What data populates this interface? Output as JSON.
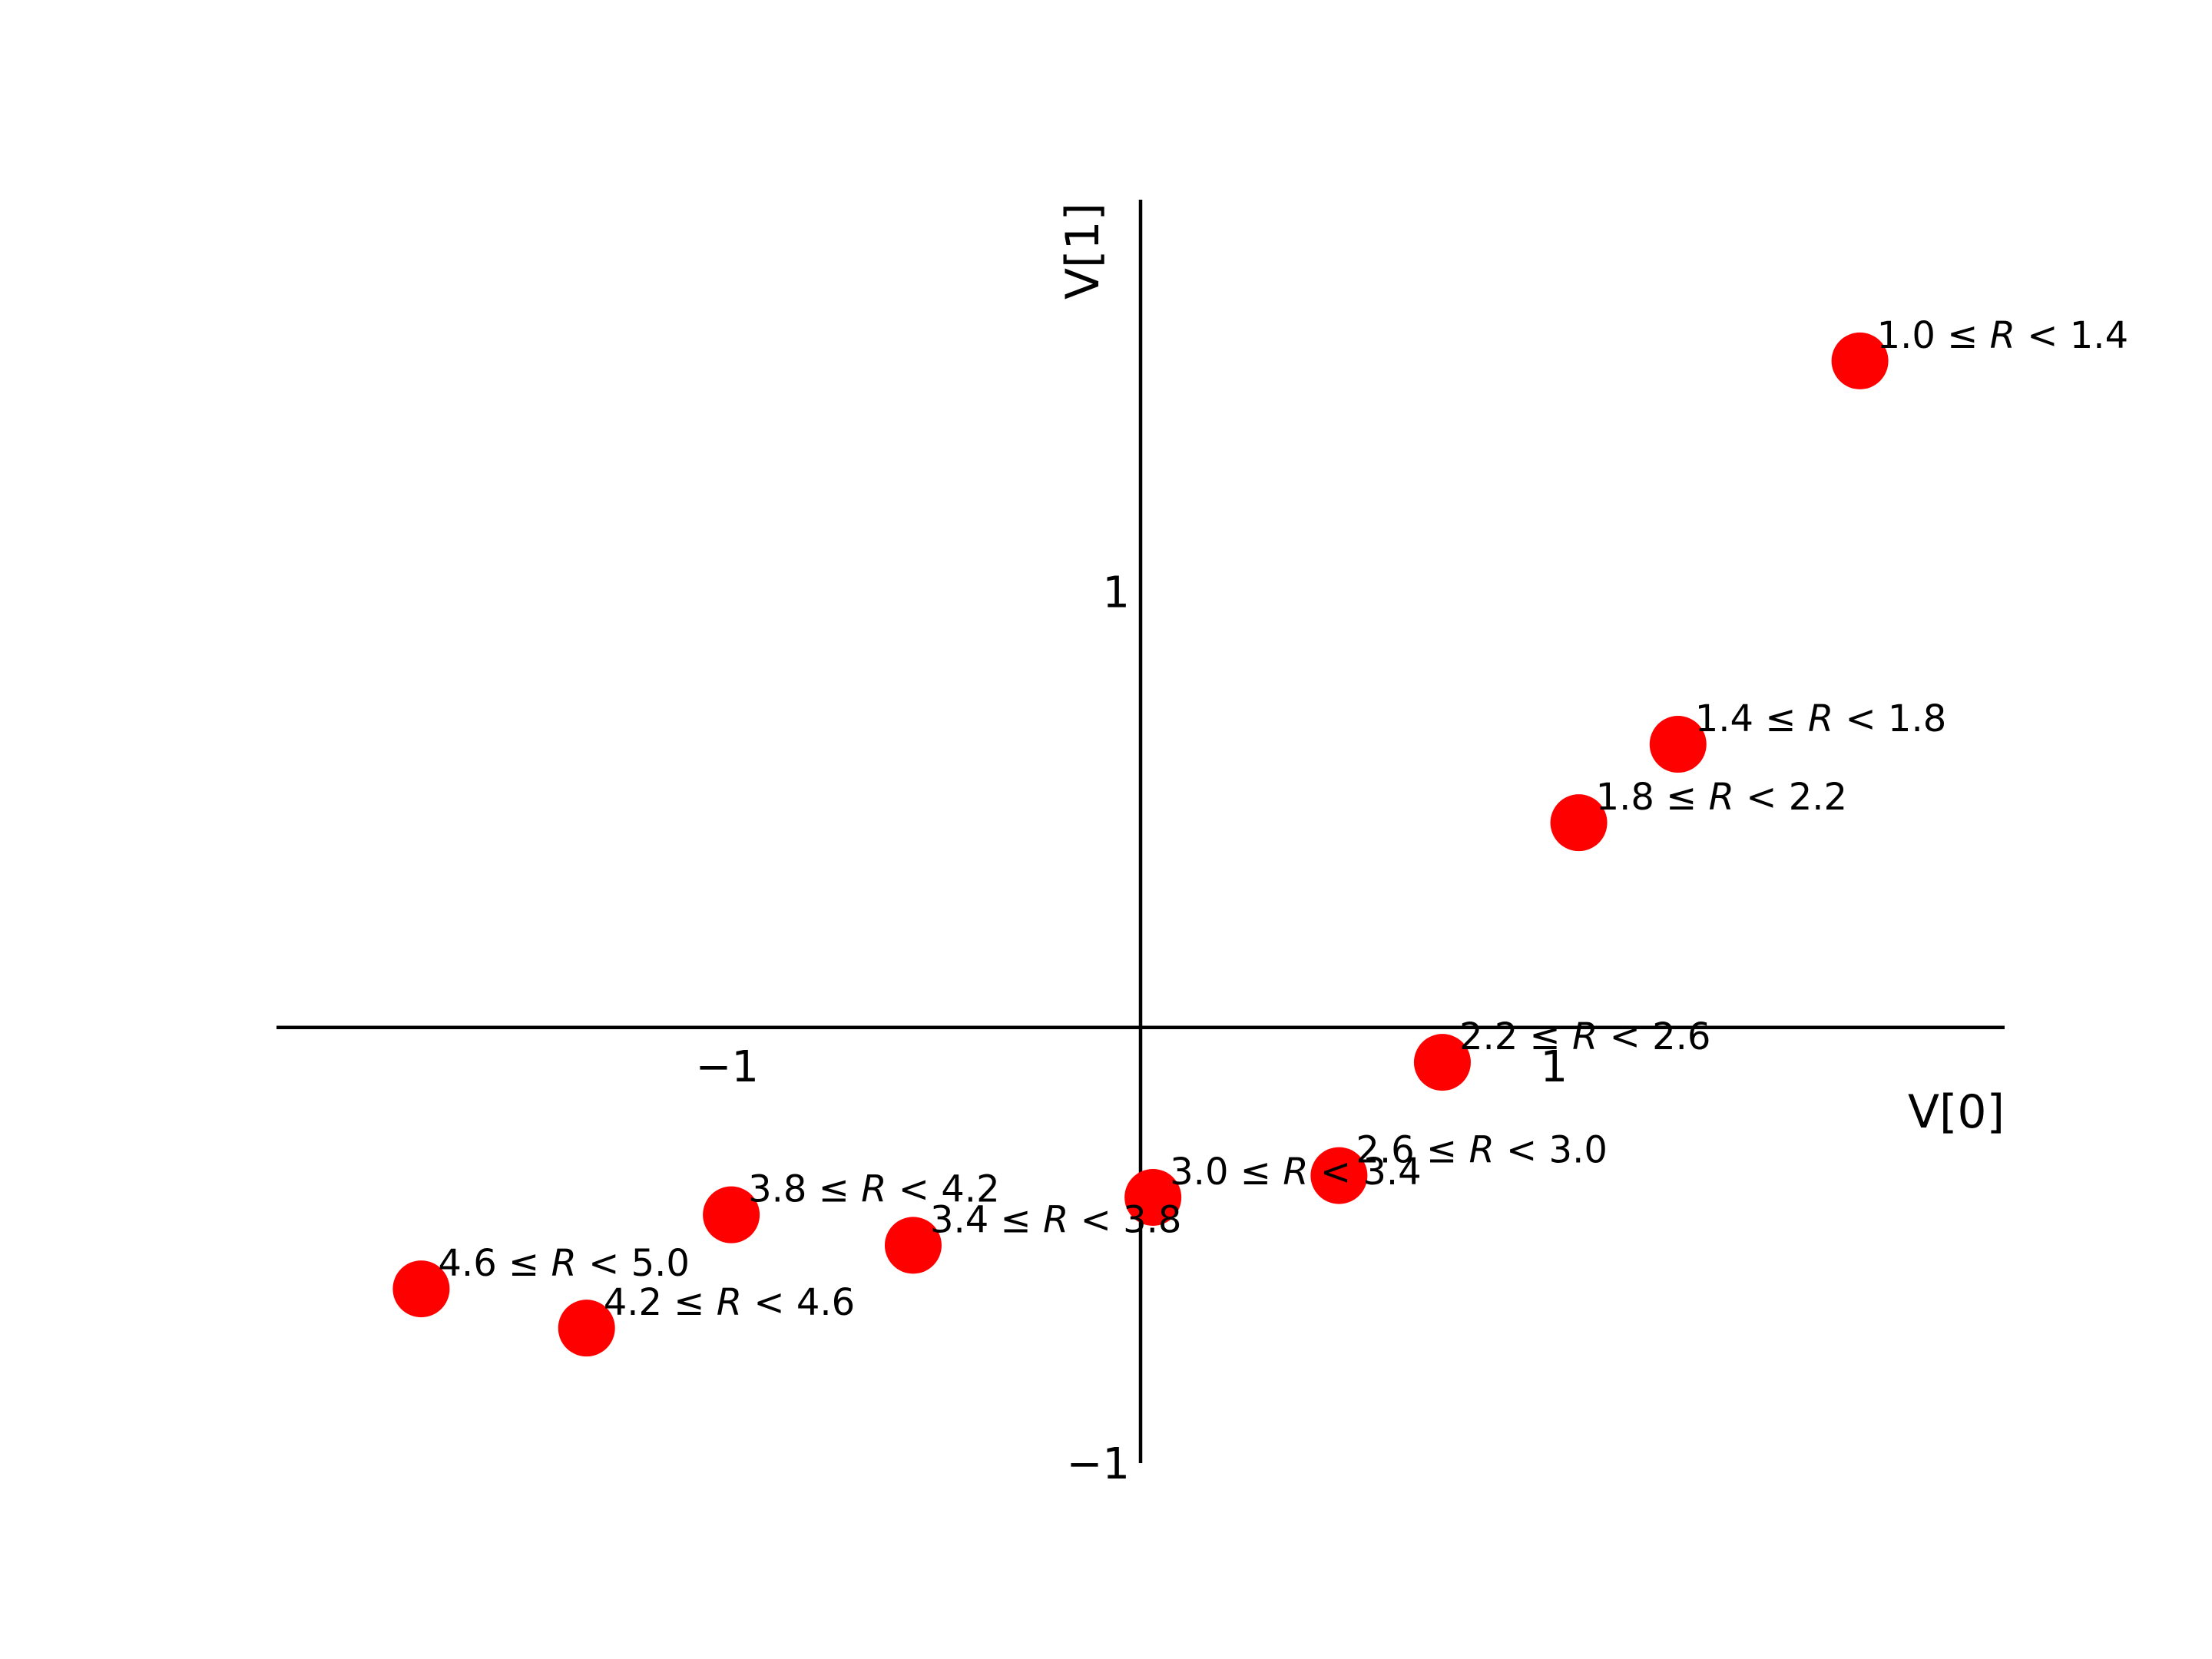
{
  "chart_data": {
    "type": "scatter",
    "title": "",
    "xlabel": "V[0]",
    "ylabel": "V[1]",
    "xlim": [
      -2.09,
      2.09
    ],
    "ylim": [
      -1.0,
      1.9
    ],
    "x_ticks": [
      {
        "value": -1,
        "label": "−1"
      },
      {
        "value": 1,
        "label": "1"
      }
    ],
    "y_ticks": [
      {
        "value": -1,
        "label": "−1"
      },
      {
        "value": 1,
        "label": "1"
      }
    ],
    "grid": false,
    "marker_color": "#ff0000",
    "points": [
      {
        "x": 1.74,
        "y": 1.53,
        "label": [
          "1.0 ",
          "≤",
          " ",
          "R",
          " < 1.4"
        ]
      },
      {
        "x": 1.3,
        "y": 0.65,
        "label": [
          "1.4 ",
          "≤",
          " ",
          "R",
          " < 1.8"
        ]
      },
      {
        "x": 1.06,
        "y": 0.47,
        "label": [
          "1.8 ",
          "≤",
          " ",
          "R",
          " < 2.2"
        ]
      },
      {
        "x": 0.73,
        "y": -0.08,
        "label": [
          "2.2 ",
          "≤",
          " ",
          "R",
          " < 2.6"
        ]
      },
      {
        "x": 0.48,
        "y": -0.34,
        "label": [
          "2.6 ",
          "≤",
          " ",
          "R",
          " < 3.0"
        ]
      },
      {
        "x": 0.03,
        "y": -0.39,
        "label": [
          "3.0 ",
          "≤",
          " ",
          "R",
          " < 3.4"
        ]
      },
      {
        "x": -0.55,
        "y": -0.5,
        "label": [
          "3.4 ",
          "≤",
          " ",
          "R",
          " < 3.8"
        ]
      },
      {
        "x": -0.99,
        "y": -0.43,
        "label": [
          "3.8 ",
          "≤",
          " ",
          "R",
          " < 4.2"
        ]
      },
      {
        "x": -1.34,
        "y": -0.69,
        "label": [
          "4.2 ",
          "≤",
          " ",
          "R",
          " < 4.6"
        ]
      },
      {
        "x": -1.74,
        "y": -0.6,
        "label": [
          "4.6 ",
          "≤",
          " ",
          "R",
          " < 5.0"
        ]
      }
    ]
  }
}
